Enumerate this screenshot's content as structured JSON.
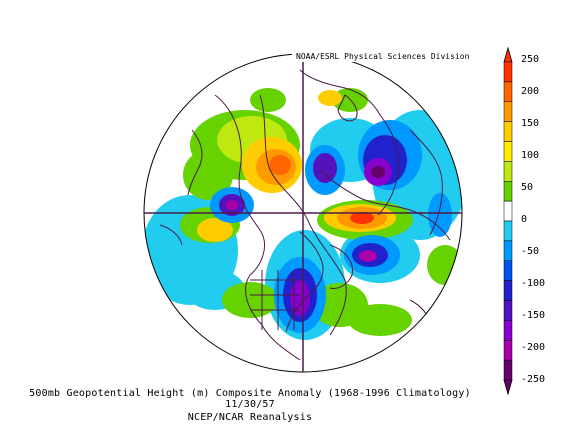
{
  "map": {
    "source_label": "NOAA/ESRL Physical Sciences Division",
    "caption_line1": "500mb Geopotential Height (m) Composite Anomaly (1968-1996 Climatology)",
    "caption_line2": "11/30/57",
    "caption_line3": "NCEP/NCAR Reanalysis"
  },
  "colorbar": {
    "labels": [
      "250",
      "200",
      "150",
      "100",
      "50",
      "0",
      "-50",
      "-100",
      "-150",
      "-200",
      "-250"
    ],
    "colors": [
      "#ff3300",
      "#ff6600",
      "#ff9900",
      "#ffcc00",
      "#ffee00",
      "#bfe810",
      "#66d200",
      "#ffffff",
      "#22ccee",
      "#0099ff",
      "#0055ee",
      "#2222cc",
      "#5511bb",
      "#8800cc",
      "#aa00aa",
      "#66006a"
    ]
  },
  "colors": {
    "coastline": "#4a1a4a",
    "frame": "#000000"
  }
}
